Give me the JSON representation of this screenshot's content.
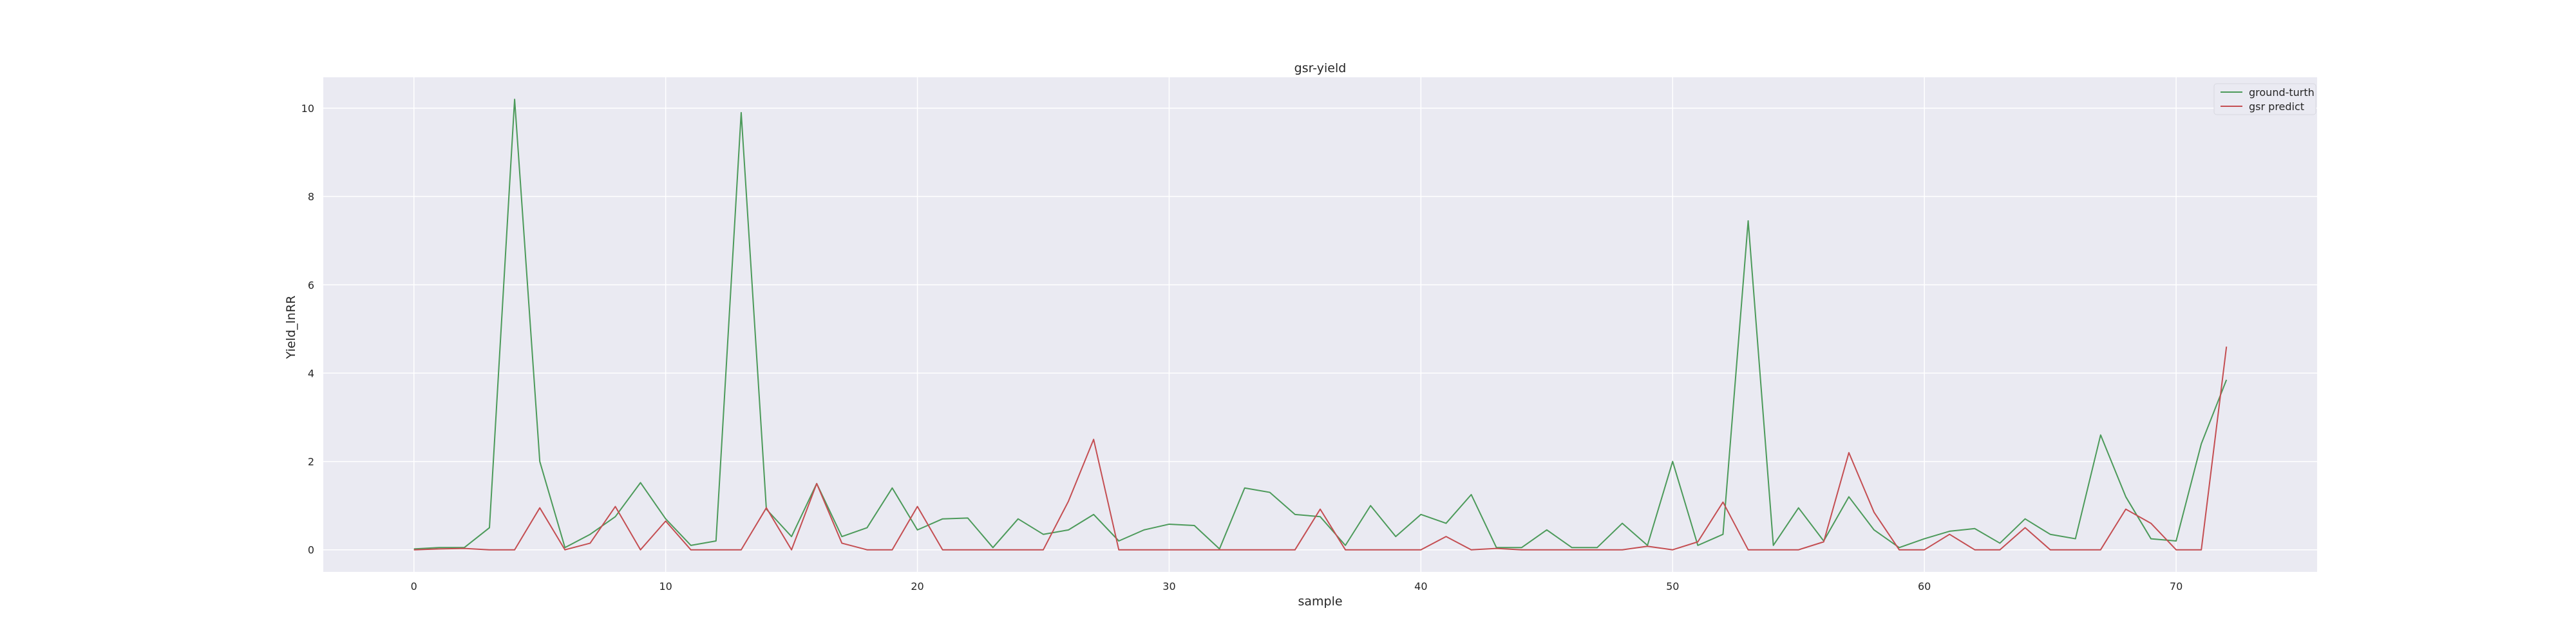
{
  "chart_data": {
    "type": "line",
    "title": "gsr-yield",
    "xlabel": "sample",
    "ylabel": "Yield_lnRR",
    "xlim": [
      -3.6,
      75.6
    ],
    "ylim": [
      -0.5,
      10.7
    ],
    "xticks": [
      0,
      10,
      20,
      30,
      40,
      50,
      60,
      70
    ],
    "yticks": [
      0,
      2,
      4,
      6,
      8,
      10
    ],
    "grid": true,
    "legend_position": "top-right",
    "x": [
      0,
      1,
      2,
      3,
      4,
      5,
      6,
      7,
      8,
      9,
      10,
      11,
      12,
      13,
      14,
      15,
      16,
      17,
      18,
      19,
      20,
      21,
      22,
      23,
      24,
      25,
      26,
      27,
      28,
      29,
      30,
      31,
      32,
      33,
      34,
      35,
      36,
      37,
      38,
      39,
      40,
      41,
      42,
      43,
      44,
      45,
      46,
      47,
      48,
      49,
      50,
      51,
      52,
      53,
      54,
      55,
      56,
      57,
      58,
      59,
      60,
      61,
      62,
      63,
      64,
      65,
      66,
      67,
      68,
      69,
      70,
      71,
      72
    ],
    "series": [
      {
        "name": "ground-turth",
        "color": "#4c9a5a",
        "values": [
          0.02,
          0.05,
          0.05,
          0.5,
          10.2,
          2.0,
          0.05,
          0.35,
          0.75,
          1.52,
          0.7,
          0.1,
          0.2,
          9.9,
          0.92,
          0.3,
          1.5,
          0.3,
          0.5,
          1.4,
          0.45,
          0.7,
          0.72,
          0.05,
          0.7,
          0.35,
          0.45,
          0.8,
          0.2,
          0.45,
          0.58,
          0.55,
          0.02,
          1.4,
          1.3,
          0.8,
          0.75,
          0.1,
          1.0,
          0.3,
          0.8,
          0.6,
          1.25,
          0.05,
          0.05,
          0.45,
          0.05,
          0.05,
          0.6,
          0.1,
          2.0,
          0.1,
          0.35,
          7.45,
          0.1,
          0.95,
          0.2,
          1.2,
          0.45,
          0.05,
          0.25,
          0.42,
          0.48,
          0.15,
          0.7,
          0.35,
          0.25,
          2.6,
          1.2,
          0.25,
          0.2,
          2.4,
          3.85
        ]
      },
      {
        "name": "gsr predict",
        "color": "#c44e52",
        "values": [
          0.0,
          0.02,
          0.03,
          0.0,
          0.0,
          0.95,
          0.0,
          0.15,
          0.98,
          0.0,
          0.65,
          0.0,
          0.0,
          0.0,
          0.95,
          0.0,
          1.5,
          0.15,
          0.0,
          0.0,
          0.98,
          0.0,
          0.0,
          0.0,
          0.0,
          0.0,
          1.1,
          2.5,
          0.0,
          0.0,
          0.0,
          0.0,
          0.0,
          0.0,
          0.0,
          0.0,
          0.92,
          0.0,
          0.0,
          0.0,
          0.0,
          0.3,
          0.0,
          0.03,
          0.0,
          0.0,
          0.0,
          0.0,
          0.0,
          0.08,
          0.0,
          0.18,
          1.08,
          0.0,
          0.0,
          0.0,
          0.18,
          2.2,
          0.85,
          0.0,
          0.0,
          0.35,
          0.0,
          0.0,
          0.5,
          0.0,
          0.0,
          0.0,
          0.92,
          0.6,
          0.0,
          0.0,
          4.6
        ]
      }
    ]
  }
}
